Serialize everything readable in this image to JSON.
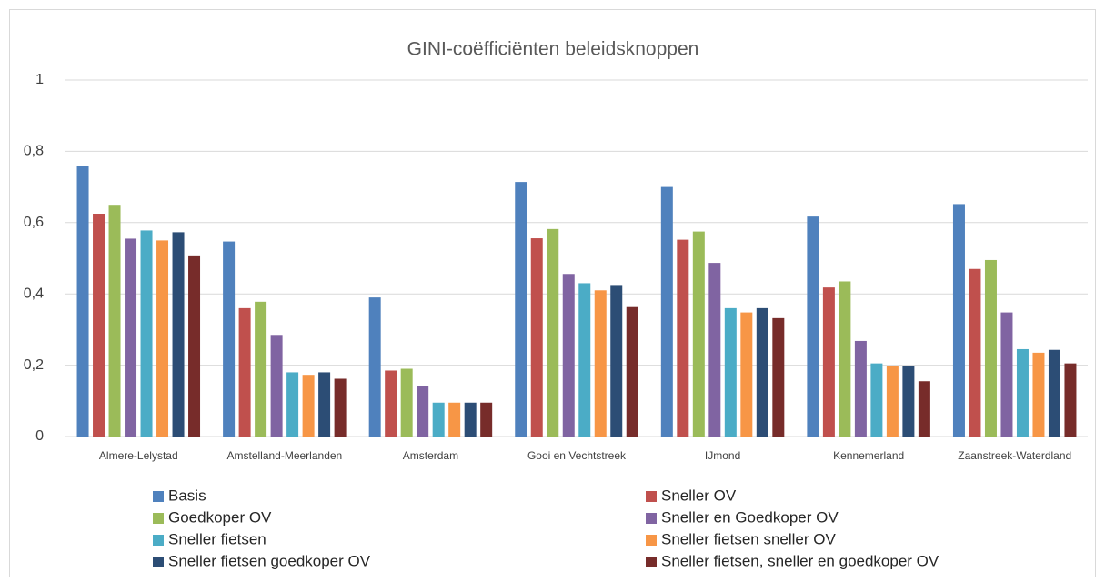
{
  "chart_data": {
    "type": "bar",
    "title": "GINI-coëfficiënten beleidsknoppen",
    "categories": [
      "Almere-Lelystad",
      "Amstelland-Meerlanden",
      "Amsterdam",
      "Gooi en Vechtstreek",
      "IJmond",
      "Kennemerland",
      "Zaanstreek-Waterdland"
    ],
    "series": [
      {
        "name": "Basis",
        "color": "#4f81bd",
        "values": [
          0.76,
          0.547,
          0.39,
          0.714,
          0.7,
          0.617,
          0.652
        ]
      },
      {
        "name": "Sneller OV",
        "color": "#c0504d",
        "values": [
          0.625,
          0.36,
          0.185,
          0.556,
          0.552,
          0.418,
          0.47
        ]
      },
      {
        "name": "Goedkoper OV",
        "color": "#9bbb59",
        "values": [
          0.65,
          0.378,
          0.19,
          0.582,
          0.575,
          0.435,
          0.495
        ]
      },
      {
        "name": "Sneller en Goedkoper OV",
        "color": "#8064a2",
        "values": [
          0.555,
          0.285,
          0.142,
          0.456,
          0.487,
          0.268,
          0.348
        ]
      },
      {
        "name": "Sneller fietsen",
        "color": "#4bacc6",
        "values": [
          0.578,
          0.18,
          0.095,
          0.43,
          0.36,
          0.205,
          0.245
        ]
      },
      {
        "name": "Sneller fietsen sneller OV",
        "color": "#f79646",
        "values": [
          0.55,
          0.173,
          0.095,
          0.41,
          0.348,
          0.198,
          0.235
        ]
      },
      {
        "name": "Sneller fietsen goedkoper OV",
        "color": "#2c4d75",
        "values": [
          0.573,
          0.18,
          0.095,
          0.425,
          0.36,
          0.198,
          0.243
        ]
      },
      {
        "name": "Sneller fietsen, sneller en goedkoper OV",
        "color": "#772c2a",
        "values": [
          0.508,
          0.162,
          0.095,
          0.363,
          0.332,
          0.155,
          0.205
        ]
      }
    ],
    "ylim": [
      0,
      1
    ],
    "yticks": [
      0,
      {
        "value": 0.2,
        "label": "0,2"
      },
      {
        "value": 0.4,
        "label": "0,4"
      },
      {
        "value": 0.6,
        "label": "0,6"
      },
      {
        "value": 0.8,
        "label": "0,8"
      },
      1
    ],
    "grid": true,
    "legend": "bottom"
  }
}
